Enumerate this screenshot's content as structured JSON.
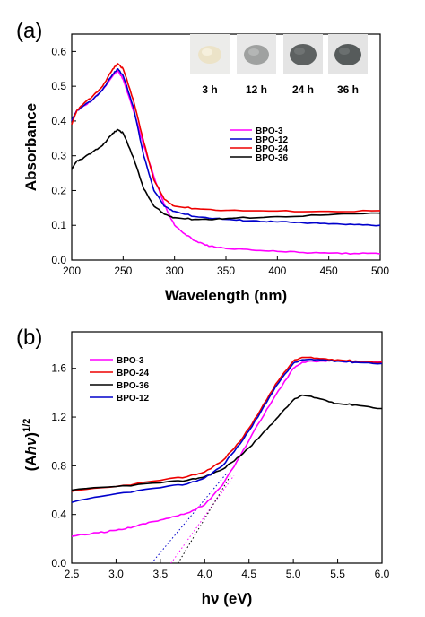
{
  "chart_data": [
    {
      "panel_label": "(a)",
      "type": "line",
      "xlabel": "Wavelength (nm)",
      "ylabel": "Absorbance",
      "xlim": [
        200,
        500
      ],
      "ylim": [
        0.0,
        0.65
      ],
      "xticks": [
        "200",
        "250",
        "300",
        "350",
        "400",
        "450",
        "500"
      ],
      "yticks": [
        "0.0",
        "0.1",
        "0.2",
        "0.3",
        "0.4",
        "0.5",
        "0.6"
      ],
      "grid": false,
      "legend_position": "center-right",
      "series": [
        {
          "name": "BPO-3",
          "color": "#ff00ff",
          "points": [
            [
              200,
              0.4
            ],
            [
              205,
              0.43
            ],
            [
              210,
              0.44
            ],
            [
              220,
              0.46
            ],
            [
              230,
              0.49
            ],
            [
              240,
              0.53
            ],
            [
              245,
              0.545
            ],
            [
              250,
              0.52
            ],
            [
              260,
              0.43
            ],
            [
              270,
              0.33
            ],
            [
              280,
              0.24
            ],
            [
              290,
              0.16
            ],
            [
              300,
              0.1
            ],
            [
              310,
              0.075
            ],
            [
              320,
              0.055
            ],
            [
              330,
              0.043
            ],
            [
              340,
              0.037
            ],
            [
              350,
              0.033
            ],
            [
              375,
              0.029
            ],
            [
              400,
              0.025
            ],
            [
              425,
              0.022
            ],
            [
              450,
              0.02
            ],
            [
              475,
              0.019
            ],
            [
              500,
              0.018
            ]
          ]
        },
        {
          "name": "BPO-12",
          "color": "#0000cc",
          "points": [
            [
              200,
              0.4
            ],
            [
              205,
              0.43
            ],
            [
              210,
              0.44
            ],
            [
              220,
              0.46
            ],
            [
              230,
              0.49
            ],
            [
              240,
              0.535
            ],
            [
              245,
              0.55
            ],
            [
              250,
              0.53
            ],
            [
              260,
              0.44
            ],
            [
              270,
              0.3
            ],
            [
              280,
              0.2
            ],
            [
              290,
              0.155
            ],
            [
              300,
              0.14
            ],
            [
              320,
              0.125
            ],
            [
              340,
              0.12
            ],
            [
              360,
              0.115
            ],
            [
              380,
              0.113
            ],
            [
              400,
              0.11
            ],
            [
              425,
              0.107
            ],
            [
              450,
              0.104
            ],
            [
              475,
              0.102
            ],
            [
              500,
              0.1
            ]
          ]
        },
        {
          "name": "BPO-24",
          "color": "#ee0000",
          "points": [
            [
              200,
              0.39
            ],
            [
              205,
              0.43
            ],
            [
              210,
              0.445
            ],
            [
              220,
              0.47
            ],
            [
              230,
              0.5
            ],
            [
              240,
              0.55
            ],
            [
              245,
              0.565
            ],
            [
              250,
              0.55
            ],
            [
              260,
              0.46
            ],
            [
              270,
              0.34
            ],
            [
              280,
              0.23
            ],
            [
              290,
              0.175
            ],
            [
              300,
              0.155
            ],
            [
              320,
              0.148
            ],
            [
              350,
              0.143
            ],
            [
              400,
              0.141
            ],
            [
              450,
              0.14
            ],
            [
              500,
              0.142
            ]
          ]
        },
        {
          "name": "BPO-36",
          "color": "#000000",
          "points": [
            [
              200,
              0.26
            ],
            [
              205,
              0.285
            ],
            [
              210,
              0.29
            ],
            [
              220,
              0.31
            ],
            [
              230,
              0.33
            ],
            [
              240,
              0.365
            ],
            [
              245,
              0.375
            ],
            [
              250,
              0.365
            ],
            [
              260,
              0.295
            ],
            [
              270,
              0.205
            ],
            [
              280,
              0.155
            ],
            [
              290,
              0.132
            ],
            [
              300,
              0.122
            ],
            [
              320,
              0.117
            ],
            [
              340,
              0.118
            ],
            [
              360,
              0.121
            ],
            [
              400,
              0.125
            ],
            [
              450,
              0.13
            ],
            [
              500,
              0.135
            ]
          ]
        }
      ],
      "inset": {
        "samples": [
          {
            "label": "3 h",
            "color": "#ece3c8"
          },
          {
            "label": "12 h",
            "color": "#9fa1a0"
          },
          {
            "label": "24 h",
            "color": "#5d6161"
          },
          {
            "label": "36 h",
            "color": "#565b5b"
          }
        ]
      }
    },
    {
      "panel_label": "(b)",
      "type": "line",
      "xlabel": "hν (eV)",
      "ylabel": "(Ahν)1/2",
      "xlim": [
        2.5,
        6.0
      ],
      "ylim": [
        0.0,
        1.9
      ],
      "xticks": [
        "2.5",
        "3.0",
        "3.5",
        "4.0",
        "4.5",
        "5.0",
        "5.5",
        "6.0"
      ],
      "yticks": [
        "0.0",
        "0.4",
        "0.8",
        "1.2",
        "1.6"
      ],
      "grid": false,
      "legend_position": "top-left",
      "series": [
        {
          "name": "BPO-3",
          "color": "#ff00ff",
          "points": [
            [
              2.5,
              0.22
            ],
            [
              2.8,
              0.25
            ],
            [
              3.0,
              0.27
            ],
            [
              3.2,
              0.3
            ],
            [
              3.4,
              0.34
            ],
            [
              3.6,
              0.37
            ],
            [
              3.8,
              0.41
            ],
            [
              4.0,
              0.48
            ],
            [
              4.2,
              0.64
            ],
            [
              4.4,
              0.88
            ],
            [
              4.6,
              1.14
            ],
            [
              4.8,
              1.38
            ],
            [
              5.0,
              1.6
            ],
            [
              5.1,
              1.65
            ],
            [
              5.3,
              1.66
            ],
            [
              5.5,
              1.66
            ],
            [
              5.7,
              1.65
            ],
            [
              6.0,
              1.65
            ]
          ]
        },
        {
          "name": "BPO-24",
          "color": "#ee0000",
          "points": [
            [
              2.5,
              0.59
            ],
            [
              3.0,
              0.63
            ],
            [
              3.5,
              0.68
            ],
            [
              3.8,
              0.71
            ],
            [
              4.0,
              0.75
            ],
            [
              4.2,
              0.84
            ],
            [
              4.4,
              1.0
            ],
            [
              4.6,
              1.22
            ],
            [
              4.8,
              1.47
            ],
            [
              5.0,
              1.66
            ],
            [
              5.1,
              1.69
            ],
            [
              5.3,
              1.68
            ],
            [
              5.5,
              1.67
            ],
            [
              5.7,
              1.66
            ],
            [
              6.0,
              1.65
            ]
          ]
        },
        {
          "name": "BPO-36",
          "color": "#000000",
          "points": [
            [
              2.5,
              0.6
            ],
            [
              3.0,
              0.63
            ],
            [
              3.5,
              0.66
            ],
            [
              3.8,
              0.68
            ],
            [
              4.0,
              0.71
            ],
            [
              4.2,
              0.77
            ],
            [
              4.4,
              0.88
            ],
            [
              4.6,
              1.02
            ],
            [
              4.8,
              1.18
            ],
            [
              5.0,
              1.34
            ],
            [
              5.1,
              1.38
            ],
            [
              5.3,
              1.35
            ],
            [
              5.5,
              1.31
            ],
            [
              5.7,
              1.3
            ],
            [
              6.0,
              1.27
            ]
          ]
        },
        {
          "name": "BPO-12",
          "color": "#0000cc",
          "points": [
            [
              2.5,
              0.5
            ],
            [
              3.0,
              0.57
            ],
            [
              3.5,
              0.62
            ],
            [
              3.8,
              0.65
            ],
            [
              4.0,
              0.7
            ],
            [
              4.2,
              0.8
            ],
            [
              4.4,
              0.98
            ],
            [
              4.6,
              1.2
            ],
            [
              4.8,
              1.45
            ],
            [
              5.0,
              1.64
            ],
            [
              5.1,
              1.67
            ],
            [
              5.3,
              1.67
            ],
            [
              5.5,
              1.66
            ],
            [
              5.7,
              1.65
            ],
            [
              6.0,
              1.64
            ]
          ]
        }
      ],
      "tangent_lines": [
        {
          "color": "#ff00ff",
          "from": [
            3.62,
            0.0
          ],
          "to": [
            4.33,
            0.72
          ]
        },
        {
          "color": "#0000cc",
          "from": [
            3.4,
            0.0
          ],
          "to": [
            4.25,
            0.74
          ]
        },
        {
          "color": "#000000",
          "from": [
            3.7,
            0.0
          ],
          "to": [
            4.3,
            0.73
          ]
        }
      ]
    }
  ]
}
